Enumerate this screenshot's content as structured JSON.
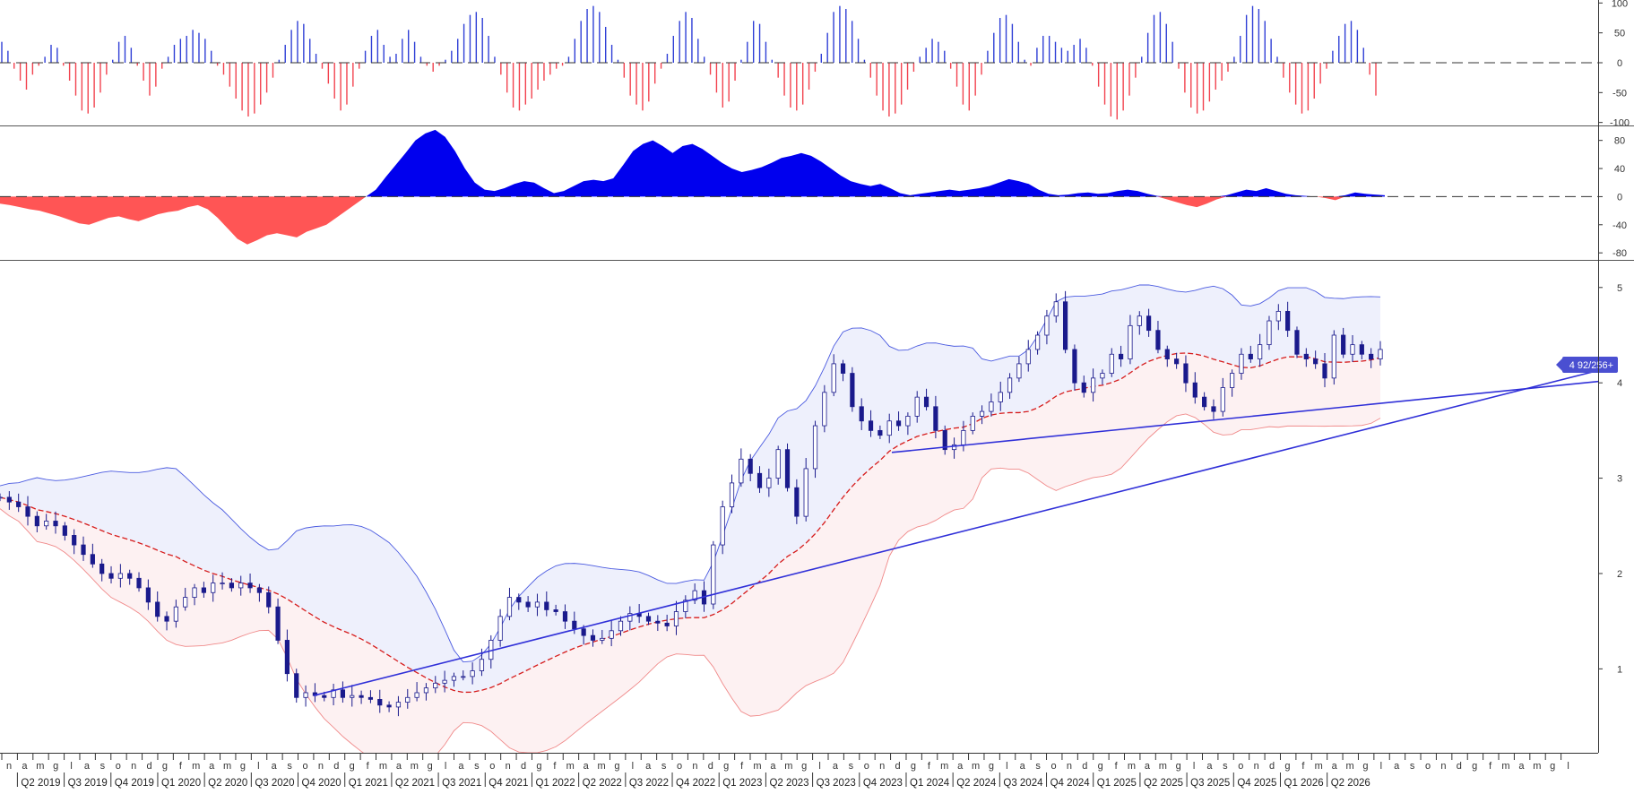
{
  "chart_data": [
    {
      "type": "bar",
      "panel": "oscillator-top",
      "y_ticks": [
        100,
        50,
        0,
        -50,
        -100
      ],
      "ylim": [
        -105,
        105
      ],
      "colors": {
        "positive": "#2f3fd6",
        "negative": "#f2434f"
      },
      "values": [
        35,
        20,
        -10,
        -30,
        -45,
        -20,
        -5,
        10,
        30,
        25,
        -5,
        -30,
        -55,
        -80,
        -85,
        -75,
        -50,
        -20,
        5,
        35,
        45,
        25,
        -5,
        -30,
        -55,
        -40,
        -10,
        10,
        30,
        40,
        45,
        55,
        50,
        40,
        20,
        -5,
        -20,
        -40,
        -60,
        -80,
        -90,
        -85,
        -70,
        -50,
        -25,
        5,
        30,
        55,
        70,
        65,
        40,
        15,
        -10,
        -35,
        -60,
        -80,
        -70,
        -40,
        -10,
        20,
        45,
        55,
        30,
        10,
        15,
        40,
        55,
        35,
        10,
        -5,
        -15,
        -5,
        5,
        20,
        40,
        65,
        80,
        85,
        75,
        45,
        10,
        -20,
        -50,
        -75,
        -80,
        -70,
        -60,
        -45,
        -30,
        -20,
        -10,
        -5,
        10,
        40,
        70,
        90,
        95,
        85,
        60,
        30,
        5,
        -25,
        -55,
        -70,
        -80,
        -65,
        -35,
        -10,
        15,
        45,
        70,
        85,
        75,
        40,
        10,
        -20,
        -50,
        -75,
        -65,
        -30,
        5,
        35,
        70,
        65,
        35,
        5,
        -25,
        -55,
        -75,
        -80,
        -70,
        -45,
        -15,
        15,
        50,
        85,
        95,
        90,
        70,
        40,
        5,
        -25,
        -55,
        -80,
        -90,
        -85,
        -70,
        -45,
        -15,
        10,
        25,
        40,
        35,
        20,
        -10,
        -40,
        -70,
        -80,
        -55,
        -20,
        20,
        50,
        75,
        80,
        65,
        35,
        5,
        -5,
        25,
        45,
        45,
        35,
        25,
        20,
        30,
        40,
        25,
        -5,
        -40,
        -70,
        -90,
        -95,
        -80,
        -55,
        -25,
        10,
        50,
        80,
        85,
        65,
        35,
        -10,
        -50,
        -75,
        -85,
        -80,
        -65,
        -45,
        -30,
        -15,
        10,
        45,
        80,
        95,
        90,
        70,
        40,
        10,
        -25,
        -50,
        -70,
        -85,
        -80,
        -60,
        -35,
        -10,
        20,
        45,
        65,
        70,
        55,
        25,
        -20,
        -55
      ]
    },
    {
      "type": "area",
      "panel": "oscillator-middle",
      "y_ticks": [
        80,
        40,
        0,
        -40,
        -80
      ],
      "ylim": [
        -90,
        100
      ],
      "colors": {
        "positive": "#0000ee",
        "negative": "#ff5555"
      },
      "values": [
        -10,
        -12,
        -15,
        -18,
        -20,
        -24,
        -28,
        -33,
        -38,
        -40,
        -35,
        -30,
        -28,
        -32,
        -35,
        -30,
        -25,
        -22,
        -20,
        -15,
        -12,
        -18,
        -30,
        -45,
        -60,
        -68,
        -62,
        -55,
        -52,
        -55,
        -58,
        -50,
        -45,
        -40,
        -30,
        -20,
        -10,
        0,
        10,
        28,
        45,
        62,
        80,
        90,
        95,
        85,
        65,
        40,
        20,
        10,
        8,
        12,
        18,
        22,
        20,
        12,
        5,
        8,
        15,
        22,
        24,
        22,
        26,
        45,
        65,
        75,
        80,
        72,
        62,
        72,
        75,
        68,
        58,
        48,
        40,
        35,
        38,
        42,
        48,
        55,
        58,
        62,
        58,
        50,
        40,
        30,
        22,
        18,
        15,
        18,
        12,
        5,
        2,
        4,
        6,
        8,
        10,
        8,
        10,
        12,
        15,
        20,
        25,
        22,
        18,
        10,
        4,
        2,
        3,
        5,
        6,
        4,
        5,
        8,
        10,
        8,
        4,
        1,
        -4,
        -8,
        -12,
        -15,
        -10,
        -4,
        2,
        6,
        10,
        8,
        12,
        8,
        4,
        2,
        1,
        0,
        -2,
        -5,
        2,
        6,
        4,
        3,
        2
      ]
    },
    {
      "type": "candlestick",
      "panel": "price",
      "y_ticks": [
        5,
        4,
        3,
        2,
        1
      ],
      "ylim": [
        0.12,
        5.28
      ],
      "colors": {
        "candle": "#1a1a8c",
        "band_upper": "#4a5ae0",
        "band_lower": "#f08a8a",
        "ma": "#d61c1c",
        "trendline": "#3030d8"
      },
      "close": [
        2.8,
        2.75,
        2.7,
        2.6,
        2.5,
        2.55,
        2.5,
        2.4,
        2.3,
        2.2,
        2.1,
        2.0,
        1.95,
        2.0,
        1.95,
        1.85,
        1.7,
        1.55,
        1.5,
        1.65,
        1.75,
        1.85,
        1.8,
        1.9,
        1.9,
        1.85,
        1.9,
        1.85,
        1.8,
        1.65,
        1.3,
        0.95,
        0.7,
        0.75,
        0.72,
        0.7,
        0.78,
        0.7,
        0.72,
        0.7,
        0.68,
        0.62,
        0.6,
        0.65,
        0.7,
        0.75,
        0.8,
        0.85,
        0.88,
        0.92,
        0.92,
        0.98,
        1.1,
        1.3,
        1.55,
        1.75,
        1.7,
        1.65,
        1.7,
        1.62,
        1.6,
        1.5,
        1.42,
        1.35,
        1.3,
        1.32,
        1.4,
        1.5,
        1.58,
        1.55,
        1.5,
        1.48,
        1.45,
        1.6,
        1.72,
        1.82,
        1.68,
        2.3,
        2.7,
        2.95,
        3.2,
        3.05,
        2.9,
        3.0,
        3.3,
        2.9,
        2.6,
        3.1,
        3.55,
        3.9,
        4.2,
        4.1,
        3.75,
        3.6,
        3.5,
        3.45,
        3.6,
        3.55,
        3.65,
        3.85,
        3.75,
        3.5,
        3.3,
        3.35,
        3.5,
        3.65,
        3.7,
        3.8,
        3.9,
        4.05,
        4.2,
        4.35,
        4.5,
        4.7,
        4.85,
        4.35,
        4.0,
        3.9,
        4.05,
        4.1,
        4.3,
        4.25,
        4.6,
        4.7,
        4.55,
        4.35,
        4.25,
        4.2,
        4.0,
        3.85,
        3.75,
        3.7,
        3.95,
        4.1,
        4.3,
        4.25,
        4.4,
        4.65,
        4.75,
        4.55,
        4.3,
        4.25,
        4.2,
        4.05,
        4.5,
        4.3,
        4.4,
        4.3,
        4.25,
        4.35
      ]
    }
  ],
  "price_label": "4 92/256+",
  "x_axis": {
    "month_ticks": [
      "n",
      "a",
      "m",
      "g",
      "l",
      "a",
      "s",
      "o",
      "n",
      "d",
      "g",
      "f",
      "m",
      "a",
      "m",
      "g",
      "l",
      "a",
      "s",
      "o",
      "n",
      "d",
      "g",
      "f",
      "m",
      "a",
      "m",
      "g",
      "l",
      "a",
      "s",
      "o",
      "n",
      "d",
      "g",
      "f",
      "m",
      "a",
      "m",
      "g",
      "l",
      "a",
      "s",
      "o",
      "n",
      "d",
      "g",
      "f",
      "m",
      "a",
      "m",
      "g",
      "l",
      "a",
      "s",
      "o",
      "n",
      "d",
      "g",
      "f",
      "m",
      "a",
      "m",
      "g",
      "l",
      "a",
      "s",
      "o",
      "n",
      "d",
      "g",
      "f",
      "m",
      "a",
      "m",
      "g",
      "l",
      "a",
      "s",
      "o",
      "n",
      "d",
      "g",
      "f",
      "m",
      "a",
      "m",
      "g",
      "l",
      "a",
      "s",
      "o",
      "n",
      "d",
      "g",
      "f",
      "m",
      "a",
      "m",
      "g",
      "l"
    ],
    "quarters": [
      "Q2 2019",
      "Q3 2019",
      "Q4 2019",
      "Q1 2020",
      "Q2 2020",
      "Q3 2020",
      "Q4 2020",
      "Q1 2021",
      "Q2 2021",
      "Q3 2021",
      "Q4 2021",
      "Q1 2022",
      "Q2 2022",
      "Q3 2022",
      "Q4 2022",
      "Q1 2023",
      "Q2 2023",
      "Q3 2023",
      "Q4 2023",
      "Q1 2024",
      "Q2 2024",
      "Q3 2024",
      "Q4 2024",
      "Q1 2025",
      "Q2 2025",
      "Q3 2025",
      "Q4 2025",
      "Q1 2026",
      "Q2 2026"
    ]
  }
}
